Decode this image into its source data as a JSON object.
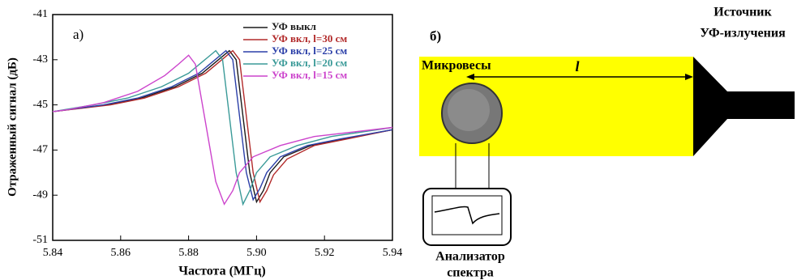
{
  "chart_data": {
    "type": "line",
    "panel_label": "а)",
    "x_label": "Частота (МГц)",
    "y_label": "Отраженный сигнал (дБ)",
    "xlim": [
      5.84,
      5.94
    ],
    "xticks": [
      5.84,
      5.86,
      5.88,
      {
        "value": 5.9,
        "label": "5.90"
      },
      5.92,
      5.94
    ],
    "ylim": [
      -51,
      -41
    ],
    "yticks": [
      -51,
      -49,
      -47,
      -45,
      -43,
      -41
    ],
    "legend": "upper right",
    "grid": false,
    "series": [
      {
        "name": "УФ выкл",
        "color": "#1a1a1a",
        "x": [
          5.84,
          5.856,
          5.866,
          5.876,
          5.884,
          5.888,
          5.892,
          5.894,
          5.896,
          5.898,
          5.9,
          5.902,
          5.904,
          5.908,
          5.916,
          5.926,
          5.94
        ],
        "values": [
          -45.3,
          -45.0,
          -44.7,
          -44.2,
          -43.6,
          -43.1,
          -42.6,
          -43.0,
          -45.5,
          -48.0,
          -49.3,
          -48.8,
          -48.0,
          -47.3,
          -46.8,
          -46.5,
          -46.1
        ]
      },
      {
        "name": "УФ вкл, l=30 см",
        "color": "#b22a2a",
        "x": [
          5.84,
          5.857,
          5.867,
          5.877,
          5.885,
          5.889,
          5.893,
          5.895,
          5.897,
          5.899,
          5.901,
          5.903,
          5.905,
          5.909,
          5.917,
          5.927,
          5.94
        ],
        "values": [
          -45.3,
          -45.0,
          -44.7,
          -44.2,
          -43.6,
          -43.1,
          -42.6,
          -43.0,
          -45.5,
          -48.0,
          -49.3,
          -48.8,
          -48.1,
          -47.4,
          -46.8,
          -46.5,
          -46.1
        ]
      },
      {
        "name": "УФ вкл, l=25 см",
        "color": "#2b3fa8",
        "x": [
          5.84,
          5.855,
          5.865,
          5.875,
          5.883,
          5.887,
          5.891,
          5.893,
          5.895,
          5.897,
          5.899,
          5.901,
          5.903,
          5.907,
          5.915,
          5.925,
          5.94
        ],
        "values": [
          -45.3,
          -45.0,
          -44.7,
          -44.2,
          -43.6,
          -43.1,
          -42.6,
          -43.0,
          -45.5,
          -48.0,
          -49.2,
          -48.7,
          -48.0,
          -47.3,
          -46.8,
          -46.5,
          -46.1
        ]
      },
      {
        "name": "УФ вкл, l=20 см",
        "color": "#3a9a98",
        "x": [
          5.84,
          5.852,
          5.862,
          5.872,
          5.88,
          5.884,
          5.888,
          5.89,
          5.892,
          5.894,
          5.896,
          5.898,
          5.9,
          5.904,
          5.912,
          5.922,
          5.94
        ],
        "values": [
          -45.3,
          -45.0,
          -44.7,
          -44.2,
          -43.6,
          -43.1,
          -42.6,
          -43.0,
          -45.5,
          -48.0,
          -49.4,
          -48.8,
          -48.0,
          -47.3,
          -46.8,
          -46.4,
          -46.0
        ]
      },
      {
        "name": "УФ вкл, l=15 см",
        "color": "#cc44cc",
        "x": [
          5.84,
          5.845,
          5.855,
          5.865,
          5.873,
          5.877,
          5.88,
          5.882,
          5.885,
          5.888,
          5.8905,
          5.893,
          5.895,
          5.899,
          5.907,
          5.917,
          5.94
        ],
        "values": [
          -45.3,
          -45.2,
          -44.9,
          -44.4,
          -43.7,
          -43.2,
          -42.8,
          -43.2,
          -45.8,
          -48.4,
          -49.4,
          -48.8,
          -48.0,
          -47.3,
          -46.8,
          -46.4,
          -46.0
        ]
      }
    ]
  },
  "diagram": {
    "panel_label": "б)",
    "scale_label": "Микровесы",
    "distance_label": "l",
    "source_label": [
      "Источник",
      "УФ-излучения"
    ],
    "analyzer_label": [
      "Анализатор",
      "спектра"
    ]
  }
}
